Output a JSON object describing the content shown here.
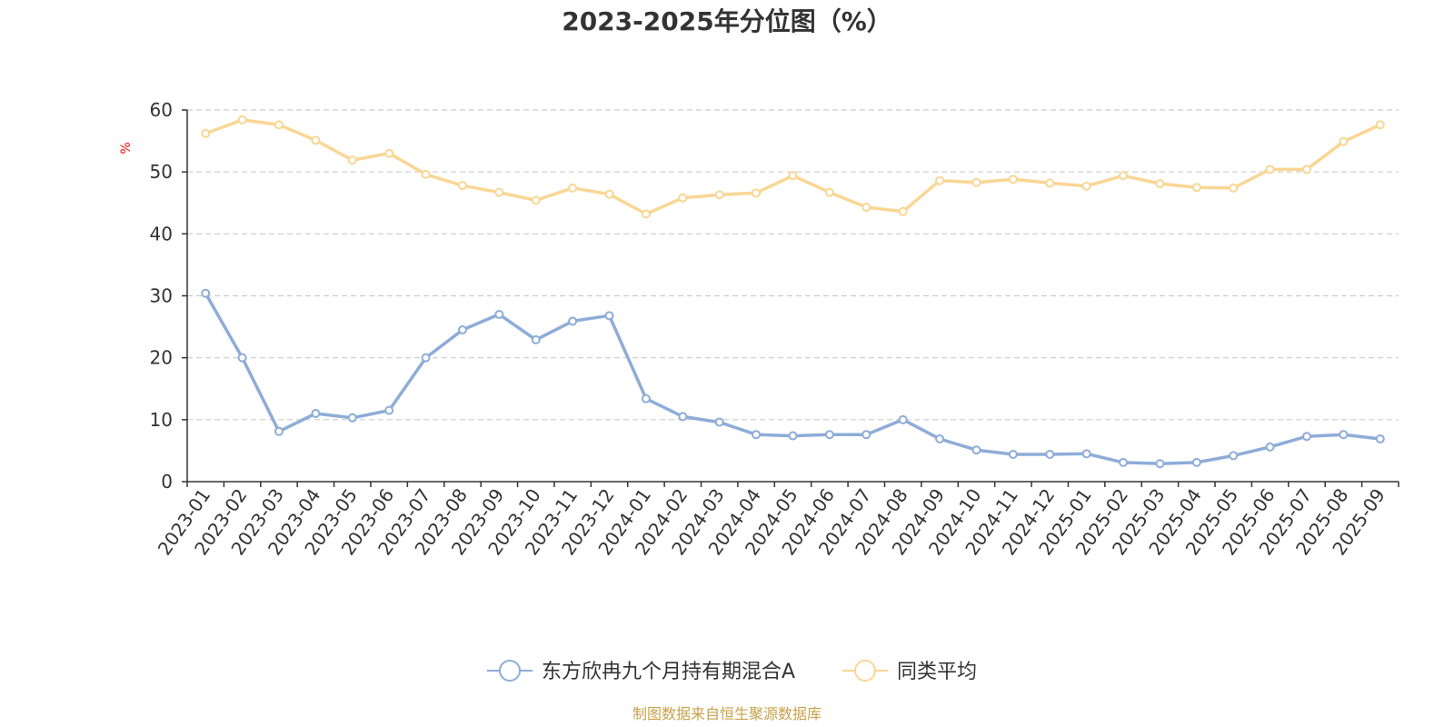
{
  "chart_data": {
    "type": "line",
    "title": "2023-2025年分位图（%）",
    "ylabel": "%",
    "ylim": [
      0,
      60
    ],
    "yticks": [
      0,
      10,
      20,
      30,
      40,
      50,
      60
    ],
    "grid": true,
    "legend_position": "bottom-center",
    "categories": [
      "2023-01",
      "2023-02",
      "2023-03",
      "2023-04",
      "2023-05",
      "2023-06",
      "2023-07",
      "2023-08",
      "2023-09",
      "2023-10",
      "2023-11",
      "2023-12",
      "2024-01",
      "2024-02",
      "2024-03",
      "2024-04",
      "2024-05",
      "2024-06",
      "2024-07",
      "2024-08",
      "2024-09",
      "2024-10",
      "2024-11",
      "2024-12",
      "2025-01",
      "2025-02",
      "2025-03",
      "2025-04",
      "2025-05",
      "2025-06",
      "2025-07",
      "2025-08",
      "2025-09"
    ],
    "series": [
      {
        "name": "东方欣冉九个月持有期混合A",
        "color": "#8eacd8",
        "values": [
          30.4,
          20.0,
          8.1,
          11.0,
          10.3,
          11.5,
          20.0,
          24.5,
          27.0,
          22.9,
          25.9,
          26.8,
          13.4,
          10.5,
          9.6,
          7.6,
          7.4,
          7.6,
          7.6,
          10.0,
          6.9,
          5.1,
          4.4,
          4.4,
          4.5,
          3.1,
          2.9,
          3.1,
          4.2,
          5.6,
          7.3,
          7.6,
          6.9
        ]
      },
      {
        "name": "同类平均",
        "color": "#fad694",
        "values": [
          56.2,
          58.4,
          57.6,
          55.1,
          51.9,
          53.0,
          49.6,
          47.8,
          46.7,
          45.4,
          47.4,
          46.4,
          43.2,
          45.8,
          46.3,
          46.6,
          49.4,
          46.7,
          44.3,
          43.6,
          48.6,
          48.3,
          48.8,
          48.2,
          47.7,
          49.4,
          48.1,
          47.5,
          47.4,
          50.4,
          50.4,
          54.9,
          57.6
        ]
      }
    ],
    "source": "制图数据来自恒生聚源数据库"
  }
}
